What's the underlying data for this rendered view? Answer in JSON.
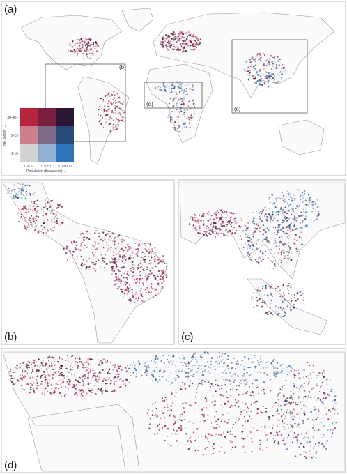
{
  "panels": {
    "a": "(a)",
    "b": "(b)",
    "c": "(c)",
    "d": "(d)"
  },
  "insets": {
    "b": "(b)",
    "c": "(c)",
    "d": "(d)"
  },
  "legend": {
    "y_label": "No. facility →",
    "x_label": "Population (thousands) →",
    "y_ticks": [
      "30-40+",
      "2-29",
      "1-10"
    ],
    "x_ticks": [
      "0-0.5",
      "0.5-5.0",
      "5.0-5000"
    ],
    "colors": [
      [
        "#b5263e",
        "#7b1f3f",
        "#2b1735"
      ],
      [
        "#cc7f8b",
        "#7d6a88",
        "#2a4a7c"
      ],
      [
        "#d3d3d3",
        "#8fb0d3",
        "#2f74ba"
      ]
    ]
  }
}
